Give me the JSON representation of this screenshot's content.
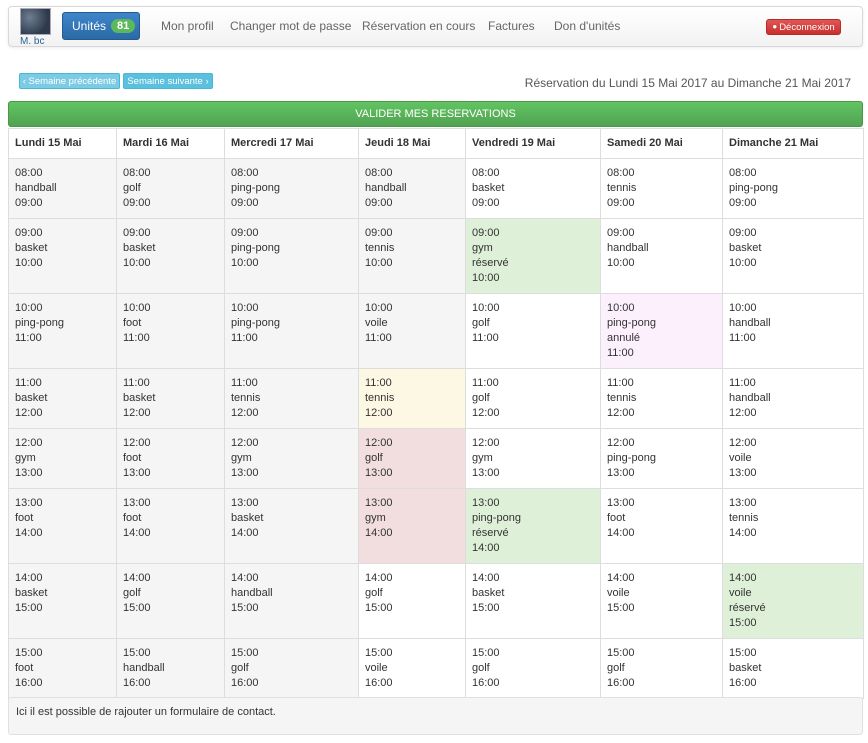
{
  "header": {
    "user_name": "M. bc",
    "units_label": "Unités",
    "units_count": "81",
    "nav": [
      "Mon profil",
      "Changer mot de passe",
      "Réservation en cours",
      "Factures",
      "Don d'unités"
    ],
    "logout_label": "Déconnexion"
  },
  "week_nav": {
    "prev_label": "‹ Semaine précédente",
    "next_label": "Semaine suivante ›",
    "range": "Réservation du Lundi 15 Mai 2017 au Dimanche 21 Mai 2017"
  },
  "validate_label": "VALIDER MES RESERVATIONS",
  "colors": {
    "available": "#ffffff",
    "past": "#f5f5f5",
    "reserved": "#dff0d8",
    "cancelled": "#fdf0fd",
    "pending": "#fcf8e3",
    "full": "#f2dede"
  },
  "days": [
    "Lundi 15 Mai",
    "Mardi 16 Mai",
    "Mercredi 17 Mai",
    "Jeudi 18 Mai",
    "Vendredi 19 Mai",
    "Samedi 20 Mai",
    "Dimanche 21 Mai"
  ],
  "schedule": [
    [
      {
        "lines": [
          "08:00",
          "handball",
          "09:00"
        ],
        "color": "gray"
      },
      {
        "lines": [
          "08:00",
          "golf",
          "09:00"
        ],
        "color": "gray"
      },
      {
        "lines": [
          "08:00",
          "ping-pong",
          "09:00"
        ],
        "color": "gray"
      },
      {
        "lines": [
          "08:00",
          "handball",
          "09:00"
        ],
        "color": "gray"
      },
      {
        "lines": [
          "08:00",
          "basket",
          "09:00"
        ],
        "color": "white"
      },
      {
        "lines": [
          "08:00",
          "tennis",
          "09:00"
        ],
        "color": "white"
      },
      {
        "lines": [
          "08:00",
          "ping-pong",
          "09:00"
        ],
        "color": "white"
      }
    ],
    [
      {
        "lines": [
          "09:00",
          "basket",
          "10:00"
        ],
        "color": "gray"
      },
      {
        "lines": [
          "09:00",
          "basket",
          "10:00"
        ],
        "color": "gray"
      },
      {
        "lines": [
          "09:00",
          "ping-pong",
          "10:00"
        ],
        "color": "gray"
      },
      {
        "lines": [
          "09:00",
          "tennis",
          "10:00"
        ],
        "color": "gray"
      },
      {
        "lines": [
          "09:00",
          "gym",
          "réservé",
          "10:00"
        ],
        "color": "green"
      },
      {
        "lines": [
          "09:00",
          "handball",
          "10:00"
        ],
        "color": "white"
      },
      {
        "lines": [
          "09:00",
          "basket",
          "10:00"
        ],
        "color": "white"
      }
    ],
    [
      {
        "lines": [
          "10:00",
          "ping-pong",
          "11:00"
        ],
        "color": "gray"
      },
      {
        "lines": [
          "10:00",
          "foot",
          "11:00"
        ],
        "color": "gray"
      },
      {
        "lines": [
          "10:00",
          "ping-pong",
          "11:00"
        ],
        "color": "gray"
      },
      {
        "lines": [
          "10:00",
          "voile",
          "11:00"
        ],
        "color": "gray"
      },
      {
        "lines": [
          "10:00",
          "golf",
          "11:00"
        ],
        "color": "white"
      },
      {
        "lines": [
          "10:00",
          "ping-pong",
          "annulé",
          "11:00"
        ],
        "color": "pink"
      },
      {
        "lines": [
          "10:00",
          "handball",
          "11:00"
        ],
        "color": "white"
      }
    ],
    [
      {
        "lines": [
          "11:00",
          "basket",
          "12:00"
        ],
        "color": "gray"
      },
      {
        "lines": [
          "11:00",
          "basket",
          "12:00"
        ],
        "color": "gray"
      },
      {
        "lines": [
          "11:00",
          "tennis",
          "12:00"
        ],
        "color": "gray"
      },
      {
        "lines": [
          "11:00",
          "tennis",
          "12:00"
        ],
        "color": "yellow"
      },
      {
        "lines": [
          "11:00",
          "golf",
          "12:00"
        ],
        "color": "white"
      },
      {
        "lines": [
          "11:00",
          "tennis",
          "12:00"
        ],
        "color": "white"
      },
      {
        "lines": [
          "11:00",
          "handball",
          "12:00"
        ],
        "color": "white"
      }
    ],
    [
      {
        "lines": [
          "12:00",
          "gym",
          "13:00"
        ],
        "color": "gray"
      },
      {
        "lines": [
          "12:00",
          "foot",
          "13:00"
        ],
        "color": "gray"
      },
      {
        "lines": [
          "12:00",
          "gym",
          "13:00"
        ],
        "color": "gray"
      },
      {
        "lines": [
          "12:00",
          "golf",
          "13:00"
        ],
        "color": "red"
      },
      {
        "lines": [
          "12:00",
          "gym",
          "13:00"
        ],
        "color": "white"
      },
      {
        "lines": [
          "12:00",
          "ping-pong",
          "13:00"
        ],
        "color": "white"
      },
      {
        "lines": [
          "12:00",
          "voile",
          "13:00"
        ],
        "color": "white"
      }
    ],
    [
      {
        "lines": [
          "13:00",
          "foot",
          "14:00"
        ],
        "color": "gray"
      },
      {
        "lines": [
          "13:00",
          "foot",
          "14:00"
        ],
        "color": "gray"
      },
      {
        "lines": [
          "13:00",
          "basket",
          "14:00"
        ],
        "color": "gray"
      },
      {
        "lines": [
          "13:00",
          "gym",
          "14:00"
        ],
        "color": "red"
      },
      {
        "lines": [
          "13:00",
          "ping-pong",
          "réservé",
          "14:00"
        ],
        "color": "green"
      },
      {
        "lines": [
          "13:00",
          "foot",
          "14:00"
        ],
        "color": "white"
      },
      {
        "lines": [
          "13:00",
          "tennis",
          "14:00"
        ],
        "color": "white"
      }
    ],
    [
      {
        "lines": [
          "14:00",
          "basket",
          "15:00"
        ],
        "color": "gray"
      },
      {
        "lines": [
          "14:00",
          "golf",
          "15:00"
        ],
        "color": "gray"
      },
      {
        "lines": [
          "14:00",
          "handball",
          "15:00"
        ],
        "color": "gray"
      },
      {
        "lines": [
          "14:00",
          "golf",
          "15:00"
        ],
        "color": "white"
      },
      {
        "lines": [
          "14:00",
          "basket",
          "15:00"
        ],
        "color": "white"
      },
      {
        "lines": [
          "14:00",
          "voile",
          "15:00"
        ],
        "color": "white"
      },
      {
        "lines": [
          "14:00",
          "voile",
          "réservé",
          "15:00"
        ],
        "color": "green"
      }
    ],
    [
      {
        "lines": [
          "15:00",
          "foot",
          "16:00"
        ],
        "color": "gray"
      },
      {
        "lines": [
          "15:00",
          "handball",
          "16:00"
        ],
        "color": "gray"
      },
      {
        "lines": [
          "15:00",
          "golf",
          "16:00"
        ],
        "color": "gray"
      },
      {
        "lines": [
          "15:00",
          "voile",
          "16:00"
        ],
        "color": "white"
      },
      {
        "lines": [
          "15:00",
          "golf",
          "16:00"
        ],
        "color": "white"
      },
      {
        "lines": [
          "15:00",
          "golf",
          "16:00"
        ],
        "color": "white"
      },
      {
        "lines": [
          "15:00",
          "basket",
          "16:00"
        ],
        "color": "white"
      }
    ]
  ],
  "footer": {
    "contact_text": "Ici il est possible de rajouter un formulaire de contact."
  }
}
